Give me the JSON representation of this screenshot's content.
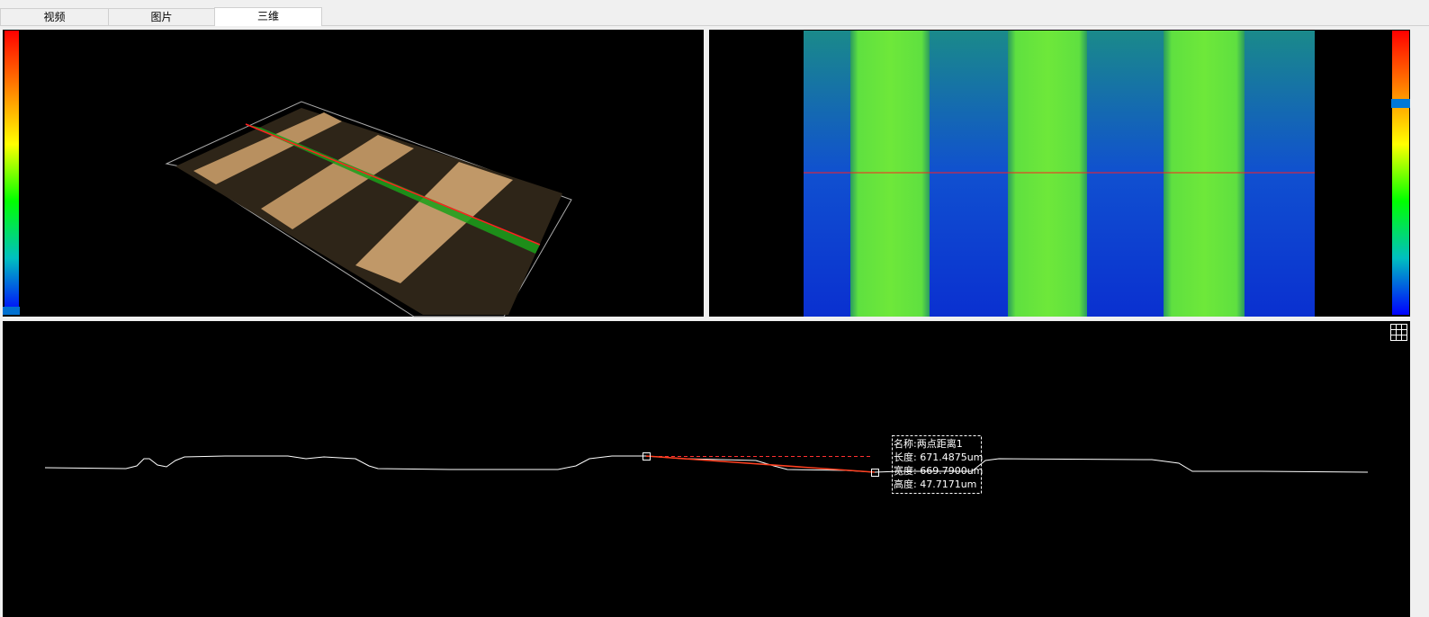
{
  "tabs": [
    "视频",
    "图片",
    "三维"
  ],
  "measurement": {
    "lines": [
      "名称:两点距离1",
      "长度: 671.4875um",
      "宽度: 669.7900um",
      "高度: 47.7171um"
    ]
  }
}
